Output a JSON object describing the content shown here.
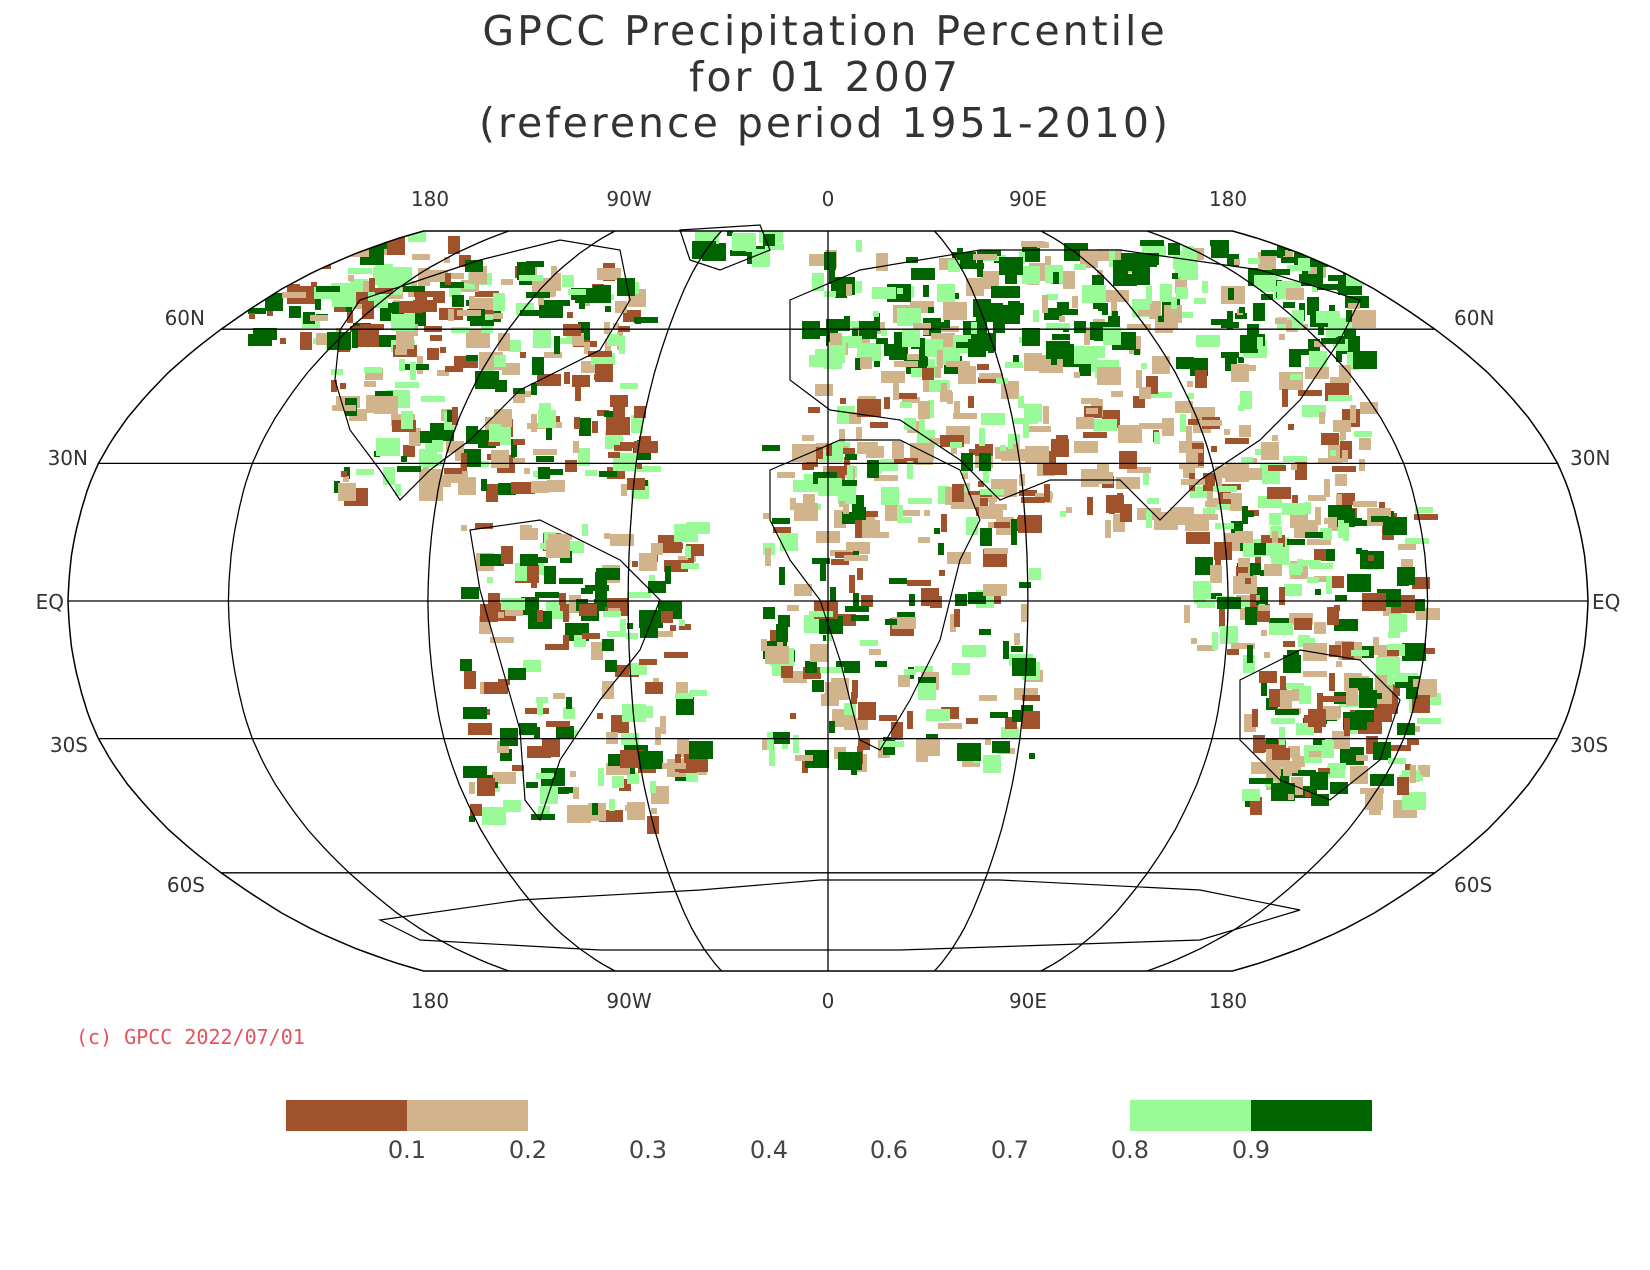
{
  "title": {
    "line1": "GPCC Precipitation Percentile",
    "line2": "for 01 2007",
    "line3": "(reference period 1951-2010)"
  },
  "map": {
    "projection": "Robinson",
    "top_lon_labels": [
      "180",
      "90W",
      "0",
      "90E",
      "180"
    ],
    "bottom_lon_labels": [
      "180",
      "90W",
      "0",
      "90E",
      "180"
    ],
    "lat_labels_left": [
      "60N",
      "30N",
      "EQ",
      "30S",
      "60S"
    ],
    "lat_labels_right": [
      "60N",
      "30N",
      "EQ",
      "30S",
      "60S"
    ],
    "colors": {
      "very_dry": "#a0522d",
      "dry": "#d2b48c",
      "wet": "#98fb98",
      "very_wet": "#006400",
      "lines": "#000000"
    }
  },
  "copyright": "(c) GPCC 2022/07/01",
  "legend": {
    "labels": [
      "0.1",
      "0.2",
      "0.3",
      "0.4",
      "0.6",
      "0.7",
      "0.8",
      "0.9"
    ],
    "colors": [
      "#a0522d",
      "#d2b48c",
      "",
      "",
      "",
      "",
      "#98fb98",
      "#006400"
    ]
  }
}
